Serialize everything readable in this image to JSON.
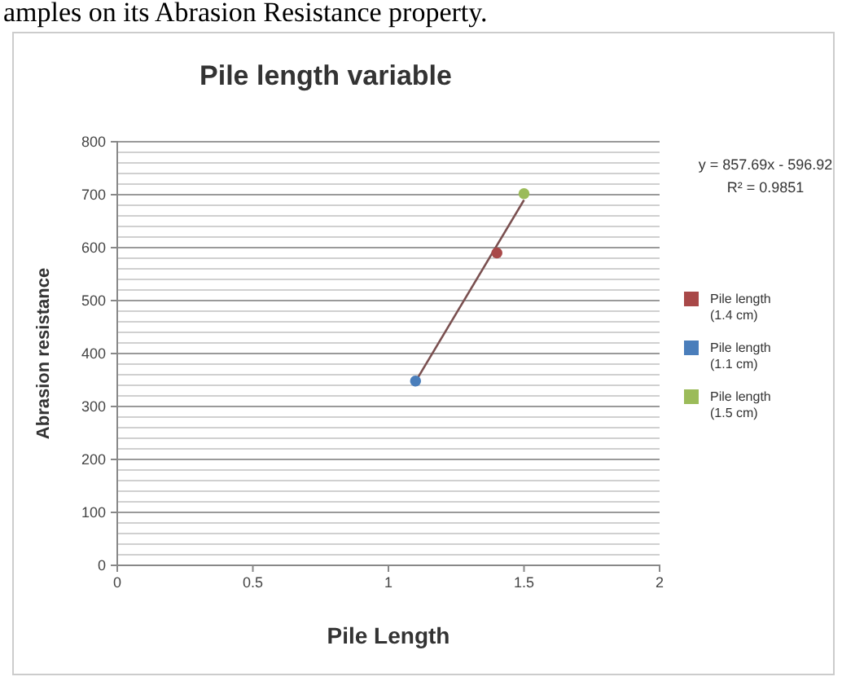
{
  "chart_data": {
    "type": "scatter",
    "title": "Pile length variable",
    "xlabel": "Pile Length",
    "ylabel": "Abrasion resistance",
    "xlim": [
      0,
      2
    ],
    "xticks": [
      0,
      0.5,
      1,
      1.5,
      2
    ],
    "ylim": [
      0,
      800
    ],
    "yticks": [
      0,
      {
        "value": 20,
        "label": null
      },
      {
        "value": 40,
        "label": null
      },
      {
        "value": 60,
        "label": null
      },
      {
        "value": 80,
        "label": null
      },
      100,
      {
        "value": 120,
        "label": null
      },
      {
        "value": 140,
        "label": null
      },
      {
        "value": 160,
        "label": null
      },
      {
        "value": 180,
        "label": null
      },
      200,
      {
        "value": 220,
        "label": null
      },
      {
        "value": 240,
        "label": null
      },
      {
        "value": 260,
        "label": null
      },
      {
        "value": 280,
        "label": null
      },
      300,
      {
        "value": 320,
        "label": null
      },
      {
        "value": 340,
        "label": null
      },
      {
        "value": 360,
        "label": null
      },
      {
        "value": 380,
        "label": null
      },
      400,
      {
        "value": 420,
        "label": null
      },
      {
        "value": 440,
        "label": null
      },
      {
        "value": 460,
        "label": null
      },
      {
        "value": 480,
        "label": null
      },
      500,
      {
        "value": 520,
        "label": null
      },
      {
        "value": 540,
        "label": null
      },
      {
        "value": 560,
        "label": null
      },
      {
        "value": 580,
        "label": null
      },
      600,
      {
        "value": 620,
        "label": null
      },
      {
        "value": 640,
        "label": null
      },
      {
        "value": 660,
        "label": null
      },
      {
        "value": 680,
        "label": null
      },
      700,
      {
        "value": 720,
        "label": null
      },
      {
        "value": 740,
        "label": null
      },
      {
        "value": 760,
        "label": null
      },
      {
        "value": 780,
        "label": null
      },
      800
    ],
    "grid": "y",
    "legend": "right",
    "marker": "circle",
    "series": [
      {
        "name": "Pile length (1.4 cm)",
        "color": "#a84848",
        "x": [
          1.4
        ],
        "values": [
          590
        ]
      },
      {
        "name": "Pile length (1.1 cm)",
        "color": "#4a7ebb",
        "x": [
          1.1
        ],
        "values": [
          348
        ]
      },
      {
        "name": "Pile length (1.5 cm)",
        "color": "#9bbb59",
        "x": [
          1.5
        ],
        "values": [
          702
        ]
      },
      {
        "type": "line",
        "marker": "none",
        "color": "#7a5050",
        "x": [
          1.1,
          1.5
        ],
        "values": [
          347,
          690
        ]
      }
    ],
    "annotations": [
      "amples on its Abrasion Resistance property.",
      "y = 857.69x - 596.92",
      "R² = 0.9851"
    ]
  }
}
